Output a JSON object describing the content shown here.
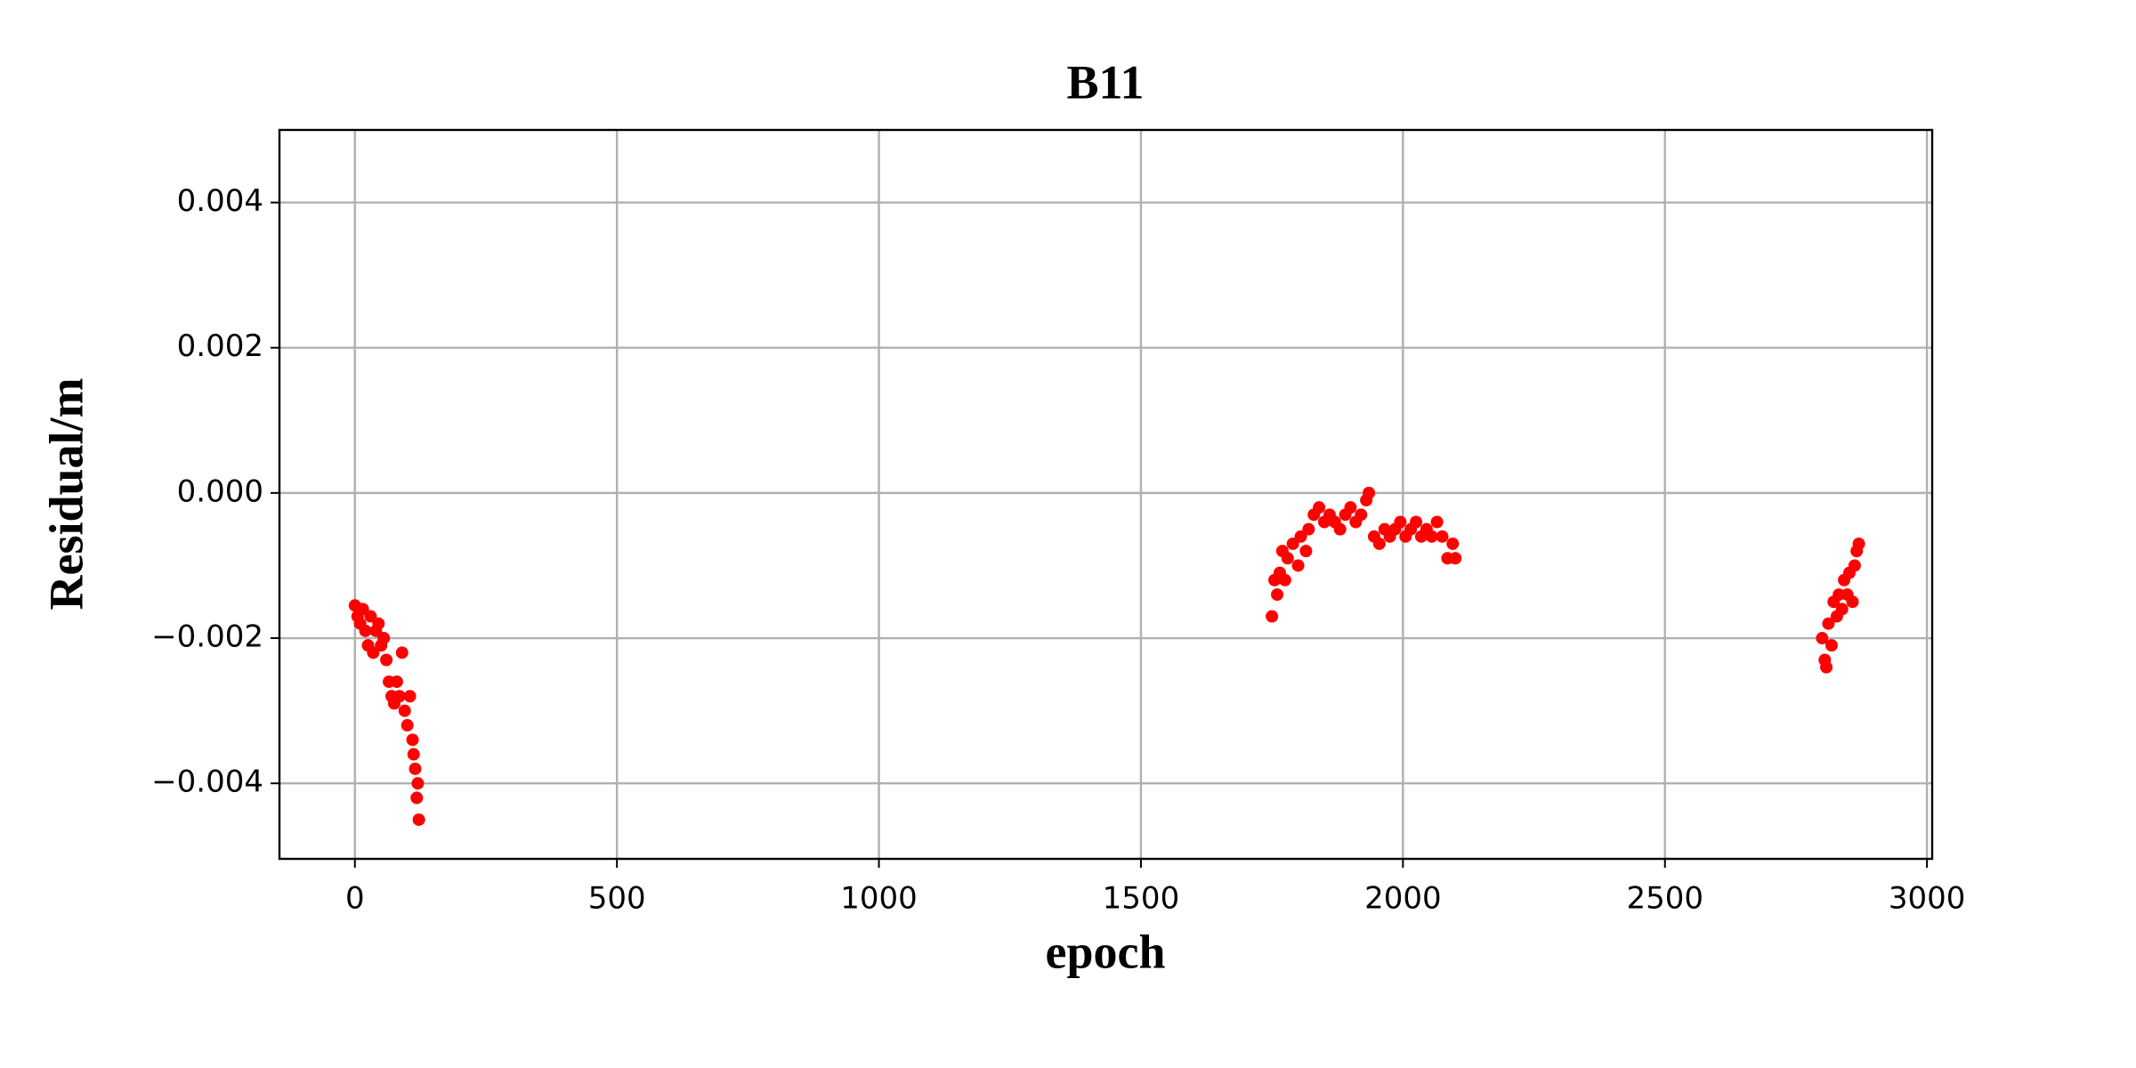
{
  "chart_data": {
    "type": "scatter",
    "title": "B11",
    "x_label": "epoch",
    "y_label": "Residual/m",
    "color": "#ff0000",
    "grid": true,
    "x": [
      0,
      5,
      10,
      15,
      20,
      25,
      30,
      35,
      40,
      45,
      50,
      55,
      60,
      65,
      70,
      75,
      80,
      85,
      90,
      95,
      100,
      105,
      110,
      112,
      115,
      118,
      120,
      122,
      1750,
      1755,
      1760,
      1765,
      1770,
      1775,
      1780,
      1790,
      1800,
      1805,
      1815,
      1820,
      1830,
      1840,
      1850,
      1860,
      1870,
      1880,
      1890,
      1900,
      1910,
      1920,
      1930,
      1935,
      1945,
      1955,
      1965,
      1975,
      1985,
      1995,
      2005,
      2015,
      2025,
      2035,
      2045,
      2055,
      2065,
      2075,
      2085,
      2095,
      2100,
      2800,
      2805,
      2808,
      2812,
      2818,
      2822,
      2828,
      2832,
      2838,
      2842,
      2848,
      2852,
      2858,
      2862,
      2866,
      2870
    ],
    "values": [
      -0.00155,
      -0.0017,
      -0.0018,
      -0.0016,
      -0.0019,
      -0.0021,
      -0.0017,
      -0.0022,
      -0.0019,
      -0.0018,
      -0.0021,
      -0.002,
      -0.0023,
      -0.0026,
      -0.0028,
      -0.0029,
      -0.0026,
      -0.0028,
      -0.0022,
      -0.003,
      -0.0032,
      -0.0028,
      -0.0034,
      -0.0036,
      -0.0038,
      -0.0042,
      -0.004,
      -0.0045,
      -0.0017,
      -0.0012,
      -0.0014,
      -0.0011,
      -0.0008,
      -0.0012,
      -0.0009,
      -0.0007,
      -0.001,
      -0.0006,
      -0.0008,
      -0.0005,
      -0.0003,
      -0.0002,
      -0.0004,
      -0.0003,
      -0.0004,
      -0.0005,
      -0.0003,
      -0.0002,
      -0.0004,
      -0.0003,
      -0.0001,
      0,
      -0.0006,
      -0.0007,
      -0.0005,
      -0.0006,
      -0.0005,
      -0.0004,
      -0.0006,
      -0.0005,
      -0.0004,
      -0.0006,
      -0.0005,
      -0.0006,
      -0.0004,
      -0.0006,
      -0.0009,
      -0.0007,
      -0.0009,
      -0.002,
      -0.0023,
      -0.0024,
      -0.0018,
      -0.0021,
      -0.0015,
      -0.0017,
      -0.0014,
      -0.0016,
      -0.0012,
      -0.0014,
      -0.0011,
      -0.0015,
      -0.001,
      -0.0008,
      -0.0007
    ],
    "xlim": [
      -144,
      3010
    ],
    "ylim": [
      -0.00504,
      0.005
    ],
    "xticks": [
      0,
      500,
      1000,
      1500,
      2000,
      2500,
      3000
    ],
    "yticks": [
      {
        "value": -0.004,
        "label": "−0.004"
      },
      {
        "value": -0.002,
        "label": "−0.002"
      },
      {
        "value": 0,
        "label": "0.000"
      },
      0.002,
      0.004
    ]
  }
}
